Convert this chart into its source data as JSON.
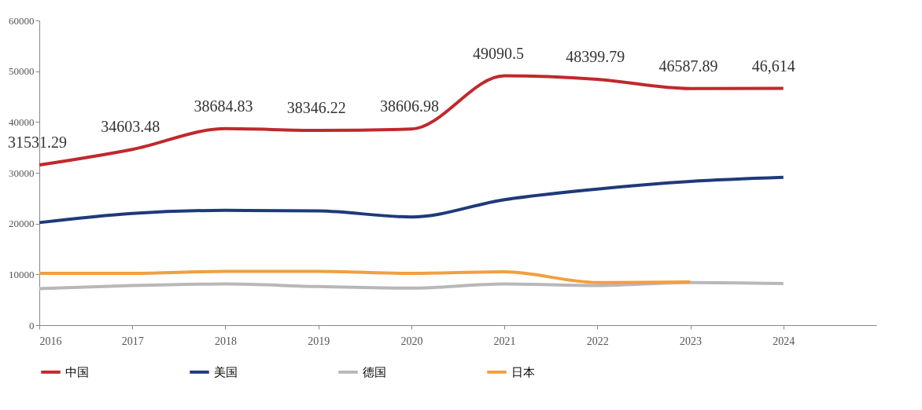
{
  "chart_data": {
    "type": "line",
    "x": [
      2016,
      2017,
      2018,
      2019,
      2020,
      2021,
      2022,
      2023,
      2024
    ],
    "xlim": [
      2016,
      2025
    ],
    "xticks": [
      2016,
      2017,
      2018,
      2019,
      2020,
      2021,
      2022,
      2023,
      2024
    ],
    "ylim": [
      0,
      60000
    ],
    "yticks": [
      0,
      10000,
      20000,
      30000,
      40000,
      50000,
      60000
    ],
    "grid": false,
    "legend": "bottom",
    "marker": "none",
    "line_style": "solid",
    "series": [
      {
        "name": "中国",
        "color": "#c0282d",
        "values": [
          31531.29,
          34603.48,
          38684.83,
          38346.22,
          38606.98,
          49090.5,
          48399.79,
          46587.89,
          46614
        ],
        "value_labels": [
          "31531.29",
          "34603.48",
          "38684.83",
          "38346.22",
          "38606.98",
          "49090.5",
          "48399.79",
          "46587.89",
          "46,614"
        ]
      },
      {
        "name": "美国",
        "color": "#1f3a7a",
        "values": [
          20200,
          22000,
          22600,
          22500,
          21300,
          24700,
          26800,
          28300,
          29100
        ]
      },
      {
        "name": "德国",
        "color": "#b8b8b8",
        "values": [
          7200,
          7800,
          8100,
          7600,
          7300,
          8100,
          7800,
          8400,
          8200
        ]
      },
      {
        "name": "日本",
        "color": "#f0a040",
        "values": [
          10200,
          10200,
          10600,
          10600,
          10200,
          10500,
          8400,
          8500,
          null
        ]
      }
    ]
  }
}
